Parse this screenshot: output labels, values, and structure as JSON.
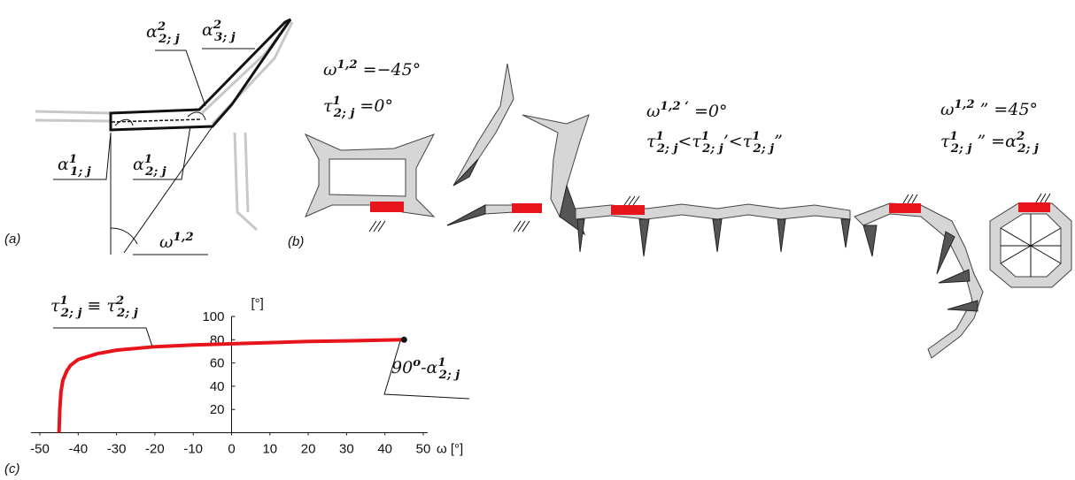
{
  "panel_labels": [
    "(a)",
    "(b)",
    "(c)"
  ],
  "diagram_a": {
    "labels": [
      [
        {
          "text": "α"
        },
        {
          "text": "2",
          "style": "sup"
        },
        {
          "text": "2; j",
          "style": "sub"
        }
      ],
      [
        {
          "text": "α"
        },
        {
          "text": "2",
          "style": "sup"
        },
        {
          "text": "3; j",
          "style": "sub"
        }
      ],
      [
        {
          "text": "α"
        },
        {
          "text": "1",
          "style": "sup"
        },
        {
          "text": "1; j",
          "style": "sub"
        }
      ],
      [
        {
          "text": "α"
        },
        {
          "text": "1",
          "style": "sup"
        },
        {
          "text": "2; j",
          "style": "sub"
        }
      ],
      [
        {
          "text": "ω"
        },
        {
          "text": "1,2",
          "style": "sup"
        }
      ]
    ]
  },
  "diagram_b": {
    "labels": [
      [
        {
          "text": "ω"
        },
        {
          "text": "1,2",
          "style": "sup"
        },
        {
          "text": "  =−45°"
        }
      ],
      [
        {
          "text": "τ"
        },
        {
          "text": "1",
          "style": "sup"
        },
        {
          "text": "2; j",
          "style": "sub"
        },
        {
          "text": " =0°"
        }
      ],
      [
        {
          "text": "ω"
        },
        {
          "text": "1,2 ‘",
          "style": "sup"
        },
        {
          "text": "  =0°"
        }
      ],
      [
        {
          "text": "τ"
        },
        {
          "text": "1",
          "style": "sup"
        },
        {
          "text": "2; j",
          "style": "sub"
        },
        {
          "text": "<τ"
        },
        {
          "text": "1",
          "style": "sup"
        },
        {
          "text": "2; j",
          "style": "sub"
        },
        {
          "text": "’<τ"
        },
        {
          "text": "1",
          "style": "sup"
        },
        {
          "text": "2; j",
          "style": "sub"
        },
        {
          "text": "”"
        }
      ],
      [
        {
          "text": "ω"
        },
        {
          "text": "1,2",
          "style": "sup"
        },
        {
          "text": "  ” =45°"
        }
      ],
      [
        {
          "text": "τ"
        },
        {
          "text": "1",
          "style": "sup"
        },
        {
          "text": "2; j",
          "style": "sub"
        },
        {
          "text": " ” =α"
        },
        {
          "text": "2",
          "style": "sup"
        },
        {
          "text": "2; j",
          "style": "sub"
        }
      ]
    ]
  },
  "chart_data": {
    "type": "line",
    "x_label": "ω [°]",
    "y_label": "[°]",
    "annotations": [
      [
        {
          "text": "τ"
        },
        {
          "text": "1",
          "style": "sup"
        },
        {
          "text": "2; j",
          "style": "sub"
        },
        {
          "text": " ≡ τ"
        },
        {
          "text": "2",
          "style": "sup"
        },
        {
          "text": "2; j",
          "style": "sub"
        }
      ],
      [
        {
          "text": "90"
        },
        {
          "text": "o",
          "style": "sup"
        },
        {
          "text": "-α"
        },
        {
          "text": "1",
          "style": "sup"
        },
        {
          "text": "2; j",
          "style": "sub"
        }
      ]
    ],
    "x": [
      -45,
      -44.8,
      -44.5,
      -44,
      -43,
      -42,
      -40,
      -35,
      -30,
      -20,
      -10,
      0,
      10,
      20,
      30,
      45
    ],
    "series": [
      {
        "color": "#e8141b",
        "values": [
          0,
          20,
          35,
          45,
          53,
          58,
          63,
          68,
          71,
          74,
          75.5,
          76.5,
          77.5,
          78.5,
          79,
          80
        ]
      }
    ],
    "xlim": [
      -50,
      50
    ],
    "ylim": [
      0,
      100
    ],
    "xticks": [
      -50,
      -40,
      -30,
      -20,
      -10,
      0,
      10,
      20,
      30,
      40,
      50
    ],
    "yticks": [
      20,
      40,
      60,
      80,
      100
    ]
  }
}
